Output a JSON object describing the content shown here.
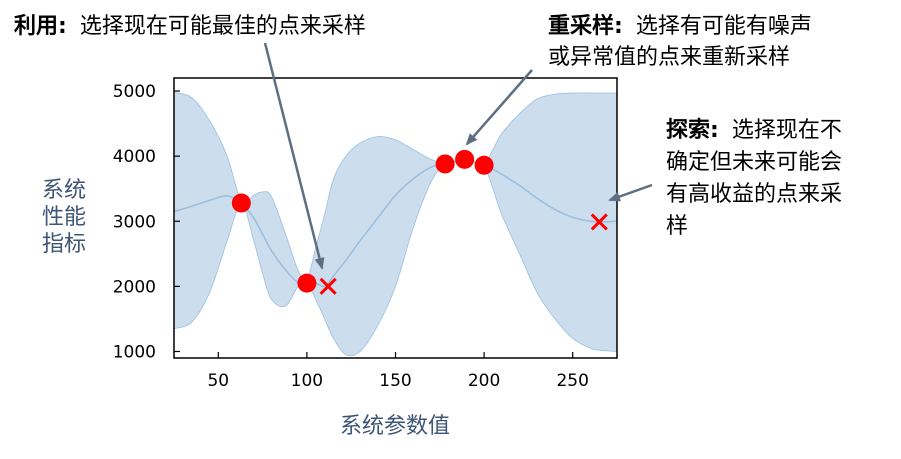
{
  "chart_data": {
    "type": "line",
    "title": "",
    "xlabel": "系统参数值",
    "ylabel_lines": [
      "系统",
      "性能",
      "指标"
    ],
    "xlim": [
      25,
      275
    ],
    "ylim": [
      900,
      5200
    ],
    "x_ticks": [
      50,
      100,
      150,
      200,
      250
    ],
    "y_ticks": [
      1000,
      2000,
      3000,
      4000,
      5000
    ],
    "grid": false,
    "colors": {
      "band": "#c9dced",
      "band_edge": "#9cbfde",
      "mean": "#9cbfde",
      "observed": "#ff0000",
      "candidate": "#ff0000",
      "arrow": "#5f6f82"
    },
    "series": [
      {
        "x": [
          25,
          35,
          45,
          55,
          63,
          70,
          75,
          80,
          88,
          95,
          100,
          105,
          110,
          115,
          122,
          130,
          140,
          150,
          160,
          170,
          178,
          185,
          189,
          195,
          200,
          205,
          210,
          220,
          230,
          240,
          250,
          260,
          265,
          275
        ],
        "mean": [
          3150,
          3230,
          3320,
          3390,
          3280,
          3050,
          2800,
          2550,
          2250,
          2060,
          2050,
          2050,
          2000,
          2160,
          2400,
          2700,
          3050,
          3400,
          3650,
          3830,
          3880,
          3920,
          3950,
          3900,
          3860,
          3800,
          3720,
          3550,
          3350,
          3180,
          3060,
          3000,
          2990,
          3000
        ],
        "upper": [
          4980,
          4900,
          4550,
          4000,
          3300,
          3400,
          3450,
          3380,
          2800,
          2250,
          2100,
          2600,
          3100,
          3650,
          4000,
          4200,
          4300,
          4250,
          4100,
          3950,
          3880,
          3920,
          3950,
          3900,
          3860,
          4100,
          4350,
          4650,
          4880,
          4950,
          4970,
          4970,
          4970,
          4970
        ],
        "lower": [
          1350,
          1450,
          1900,
          2700,
          3270,
          2700,
          2200,
          1800,
          1700,
          2000,
          2050,
          1800,
          1500,
          1200,
          950,
          1000,
          1400,
          2000,
          2900,
          3600,
          3880,
          3920,
          3950,
          3900,
          3860,
          3500,
          3100,
          2500,
          1900,
          1500,
          1200,
          1050,
          1020,
          1000
        ]
      }
    ],
    "observed_points": [
      {
        "x": 63,
        "y": 3280
      },
      {
        "x": 100,
        "y": 2050
      },
      {
        "x": 178,
        "y": 3880
      },
      {
        "x": 189,
        "y": 3950
      },
      {
        "x": 200,
        "y": 3860
      }
    ],
    "candidate_points": [
      {
        "x": 112,
        "y": 2000
      },
      {
        "x": 265,
        "y": 2990
      }
    ]
  },
  "annotations": {
    "exploit": {
      "label": "利用:",
      "lines": [
        "选择现在可能最佳的点来采样"
      ]
    },
    "resample": {
      "label": "重采样:",
      "lines": [
        "选择有可能有噪声",
        "或异常值的点来重新采样"
      ]
    },
    "explore": {
      "label": "探索:",
      "lines": [
        "选择现在不",
        "确定但未来可能会",
        "有高收益的点来采",
        "样"
      ]
    }
  }
}
